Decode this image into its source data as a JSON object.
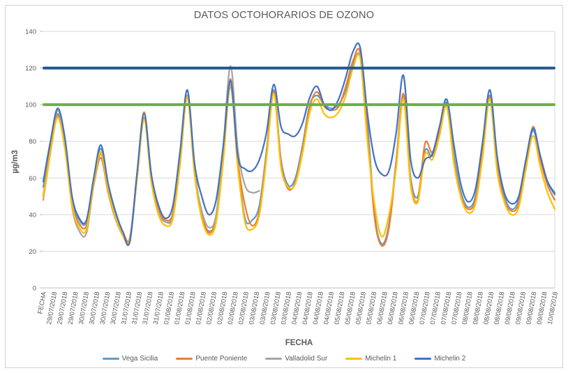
{
  "chart_data": {
    "type": "line",
    "title": "DATOS OCTOHORARIOS DE OZONO",
    "xlabel": "FECHA",
    "ylabel": "µg/m3",
    "ylim": [
      0,
      140
    ],
    "yticks": [
      0,
      20,
      40,
      60,
      80,
      100,
      120,
      140
    ],
    "grid": true,
    "legend_position": "bottom",
    "x_labels": [
      "FECHA",
      "29/07/2018",
      "29/07/2018",
      "29/07/2018",
      "30/07/2018",
      "30/07/2018",
      "30/07/2018",
      "30/07/2018",
      "31/07/2018",
      "31/07/2018",
      "31/07/2018",
      "31/07/2018",
      "01/08/2018",
      "01/08/2018",
      "01/08/2018",
      "01/08/2018",
      "02/08/2018",
      "02/08/2018",
      "02/08/2018",
      "02/08/2018",
      "03/08/2018",
      "03/08/2018",
      "03/08/2018",
      "03/08/2018",
      "04/08/2018",
      "04/08/2018",
      "04/08/2018",
      "04/08/2018",
      "05/08/2018",
      "05/08/2018",
      "05/08/2018",
      "05/08/2018",
      "06/08/2018",
      "06/08/2018",
      "06/08/2018",
      "06/08/2018",
      "07/08/2018",
      "07/08/2018",
      "07/08/2018",
      "07/08/2018",
      "08/08/2018",
      "08/08/2018",
      "08/08/2018",
      "08/08/2018",
      "09/08/2018",
      "09/08/2018",
      "09/08/2018",
      "09/08/2018",
      "10/08/2018"
    ],
    "series": [
      {
        "name": "Vega Sicilia",
        "color": "#5B9BD5",
        "values": [
          55,
          78,
          95,
          80,
          48,
          37,
          36,
          58,
          76,
          55,
          40,
          30,
          25,
          60,
          93,
          60,
          42,
          36,
          40,
          70,
          105,
          65,
          40,
          31,
          38,
          72,
          110,
          68,
          38,
          37,
          45,
          75,
          108,
          70,
          56,
          60,
          78,
          100,
          105,
          100,
          98,
          100,
          108,
          122,
          126,
          90,
          40,
          24,
          35,
          70,
          105,
          60,
          50,
          75,
          72,
          85,
          101,
          72,
          52,
          44,
          50,
          75,
          105,
          68,
          50,
          43,
          48,
          68,
          86,
          70,
          58,
          52
        ]
      },
      {
        "name": "Puente Poniente",
        "color": "#ED7D31",
        "values": [
          50,
          76,
          94,
          78,
          46,
          35,
          34,
          56,
          71,
          52,
          38,
          31,
          27,
          61,
          96,
          60,
          43,
          37,
          41,
          70,
          104,
          64,
          41,
          30,
          39,
          73,
          114,
          70,
          45,
          34,
          42,
          73,
          107,
          68,
          54,
          58,
          76,
          99,
          107,
          99,
          97,
          99,
          110,
          124,
          128,
          85,
          38,
          23,
          33,
          68,
          106,
          58,
          48,
          79,
          74,
          86,
          100,
          70,
          50,
          43,
          48,
          74,
          104,
          66,
          48,
          42,
          46,
          67,
          88,
          70,
          56,
          48
        ]
      },
      {
        "name": "Valladolid Sur",
        "color": "#A5A5A5",
        "values": [
          48,
          74,
          97,
          78,
          44,
          31,
          30,
          56,
          73,
          53,
          38,
          29,
          26,
          59,
          93,
          58,
          41,
          36,
          39,
          69,
          105,
          63,
          42,
          33,
          40,
          78,
          121,
          76,
          56,
          52,
          53,
          null,
          null,
          null,
          null,
          null,
          null,
          null,
          null,
          null,
          null,
          null,
          null,
          null,
          null,
          null,
          null,
          null,
          null,
          null,
          null,
          null,
          null,
          null,
          null,
          null,
          null,
          null,
          null,
          null,
          null,
          null,
          null,
          null,
          null,
          null,
          null,
          null,
          null,
          null,
          null,
          null
        ]
      },
      {
        "name": "Michelin 1",
        "color": "#FFC000",
        "values": [
          49,
          74,
          93,
          76,
          45,
          33,
          32,
          57,
          74,
          53,
          39,
          29,
          26,
          59,
          92,
          58,
          40,
          34,
          38,
          68,
          104,
          62,
          38,
          29,
          36,
          70,
          111,
          66,
          36,
          32,
          40,
          71,
          106,
          66,
          55,
          57,
          74,
          96,
          103,
          95,
          93,
          96,
          105,
          120,
          125,
          80,
          45,
          28,
          40,
          66,
          103,
          56,
          47,
          73,
          70,
          83,
          99,
          68,
          49,
          41,
          46,
          72,
          103,
          64,
          47,
          40,
          44,
          65,
          83,
          66,
          52,
          43
        ]
      },
      {
        "name": "Michelin 2",
        "color": "#4472C4",
        "values": [
          58,
          80,
          98,
          82,
          50,
          38,
          37,
          60,
          78,
          57,
          42,
          31,
          25,
          62,
          95,
          62,
          45,
          38,
          45,
          75,
          108,
          68,
          50,
          40,
          48,
          78,
          113,
          72,
          65,
          64,
          70,
          85,
          111,
          88,
          84,
          83,
          90,
          104,
          110,
          100,
          97,
          103,
          115,
          129,
          131,
          95,
          70,
          62,
          64,
          85,
          116,
          70,
          60,
          70,
          73,
          88,
          103,
          78,
          56,
          47,
          54,
          80,
          108,
          72,
          52,
          46,
          50,
          70,
          87,
          72,
          58,
          51
        ]
      }
    ],
    "ref_lines": [
      {
        "value": 120,
        "color": "#20568C"
      },
      {
        "value": 100,
        "color": "#70AD47"
      }
    ]
  },
  "colors": {
    "gridline": "#D9D9D9",
    "axis_line": "#BFBFBF",
    "axis_text": "#595959",
    "title_text": "#595959"
  }
}
